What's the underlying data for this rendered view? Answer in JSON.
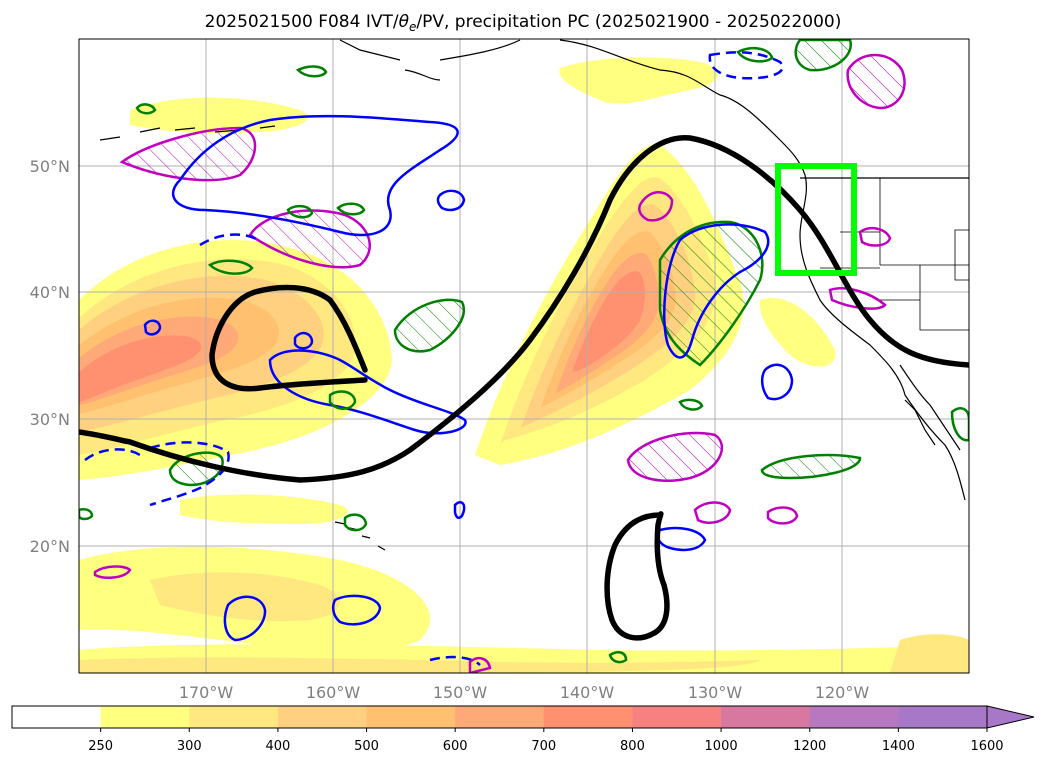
{
  "chart_data": {
    "type": "map",
    "title": "2025021500 F084 IVT/θe/PV, precipitation PC (2025021900 - 2025022000)",
    "title_parts": {
      "pre": "2025021500 F084 IVT/",
      "theta": "θ",
      "sub": "e",
      "post": "/PV, precipitation PC (2025021900 - 2025022000)"
    },
    "xlim": [
      -180,
      -110
    ],
    "ylim": [
      10,
      60
    ],
    "x_ticks": [
      {
        "value": -170,
        "label": "170°W"
      },
      {
        "value": -160,
        "label": "160°W"
      },
      {
        "value": -150,
        "label": "150°W"
      },
      {
        "value": -140,
        "label": "140°W"
      },
      {
        "value": -130,
        "label": "130°W"
      },
      {
        "value": -120,
        "label": "120°W"
      }
    ],
    "y_ticks": [
      {
        "value": 20,
        "label": "20°N"
      },
      {
        "value": 30,
        "label": "30°N"
      },
      {
        "value": 40,
        "label": "40°N"
      },
      {
        "value": 50,
        "label": "50°N"
      }
    ],
    "grid": true,
    "colorbar": {
      "levels": [
        "250",
        "300",
        "400",
        "500",
        "600",
        "700",
        "800",
        "1000",
        "1200",
        "1400",
        "1600"
      ],
      "colors": [
        "#ffffff",
        "#ffff80",
        "#ffe880",
        "#ffd080",
        "#ffc070",
        "#ffa878",
        "#ff9070",
        "#f78080",
        "#d878a0",
        "#b878c0",
        "#a878c8"
      ],
      "extend": "max"
    },
    "highlight_box": {
      "lon": [
        -125,
        -119
      ],
      "lat": [
        41.5,
        50
      ],
      "color": "#00ff00"
    },
    "thick_contour_color": "#000000",
    "contour_colors": {
      "blue": "#0000ff",
      "green": "#008000",
      "magenta": "#c000c0"
    }
  }
}
